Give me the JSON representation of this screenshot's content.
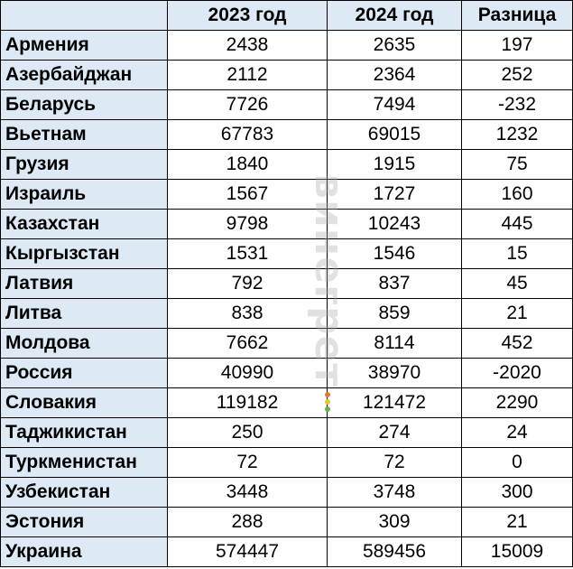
{
  "header": {
    "country": "",
    "col_2023": "2023 год",
    "col_2024": "2024 год",
    "col_diff": "Разница"
  },
  "rows": [
    {
      "country": "Армения",
      "y2023": "2438",
      "y2024": "2635",
      "diff": "197"
    },
    {
      "country": "Азербайджан",
      "y2023": "2112",
      "y2024": "2364",
      "diff": "252"
    },
    {
      "country": "Беларусь",
      "y2023": "7726",
      "y2024": "7494",
      "diff": "-232"
    },
    {
      "country": "Вьетнам",
      "y2023": "67783",
      "y2024": "69015",
      "diff": "1232"
    },
    {
      "country": "Грузия",
      "y2023": "1840",
      "y2024": "1915",
      "diff": "75"
    },
    {
      "country": "Израиль",
      "y2023": "1567",
      "y2024": "1727",
      "diff": "160"
    },
    {
      "country": "Казахстан",
      "y2023": "9798",
      "y2024": "10243",
      "diff": "445"
    },
    {
      "country": "Кыргызстан",
      "y2023": "1531",
      "y2024": "1546",
      "diff": "15"
    },
    {
      "country": "Латвия",
      "y2023": "792",
      "y2024": "837",
      "diff": "45"
    },
    {
      "country": "Литва",
      "y2023": "838",
      "y2024": "859",
      "diff": "21"
    },
    {
      "country": "Молдова",
      "y2023": "7662",
      "y2024": "8114",
      "diff": "452"
    },
    {
      "country": "Россия",
      "y2023": "40990",
      "y2024": "38970",
      "diff": "-2020"
    },
    {
      "country": "Словакия",
      "y2023": "119182",
      "y2024": "121472",
      "diff": "2290"
    },
    {
      "country": "Таджикистан",
      "y2023": "250",
      "y2024": "274",
      "diff": "24"
    },
    {
      "country": "Туркменистан",
      "y2023": "72",
      "y2024": "72",
      "diff": "0"
    },
    {
      "country": "Узбекистан",
      "y2023": "3448",
      "y2024": "3748",
      "diff": "300"
    },
    {
      "country": "Эстония",
      "y2023": "288",
      "y2024": "309",
      "diff": "21"
    },
    {
      "country": "Украина",
      "y2023": "574447",
      "y2024": "589456",
      "diff": "15009"
    }
  ],
  "watermark": {
    "text": "винегрет",
    "dot_colors": [
      "#e07a3a",
      "#e0c43a",
      "#6ab04c"
    ]
  },
  "colors": {
    "header_bg": "#dde9f5",
    "border": "#000000"
  }
}
